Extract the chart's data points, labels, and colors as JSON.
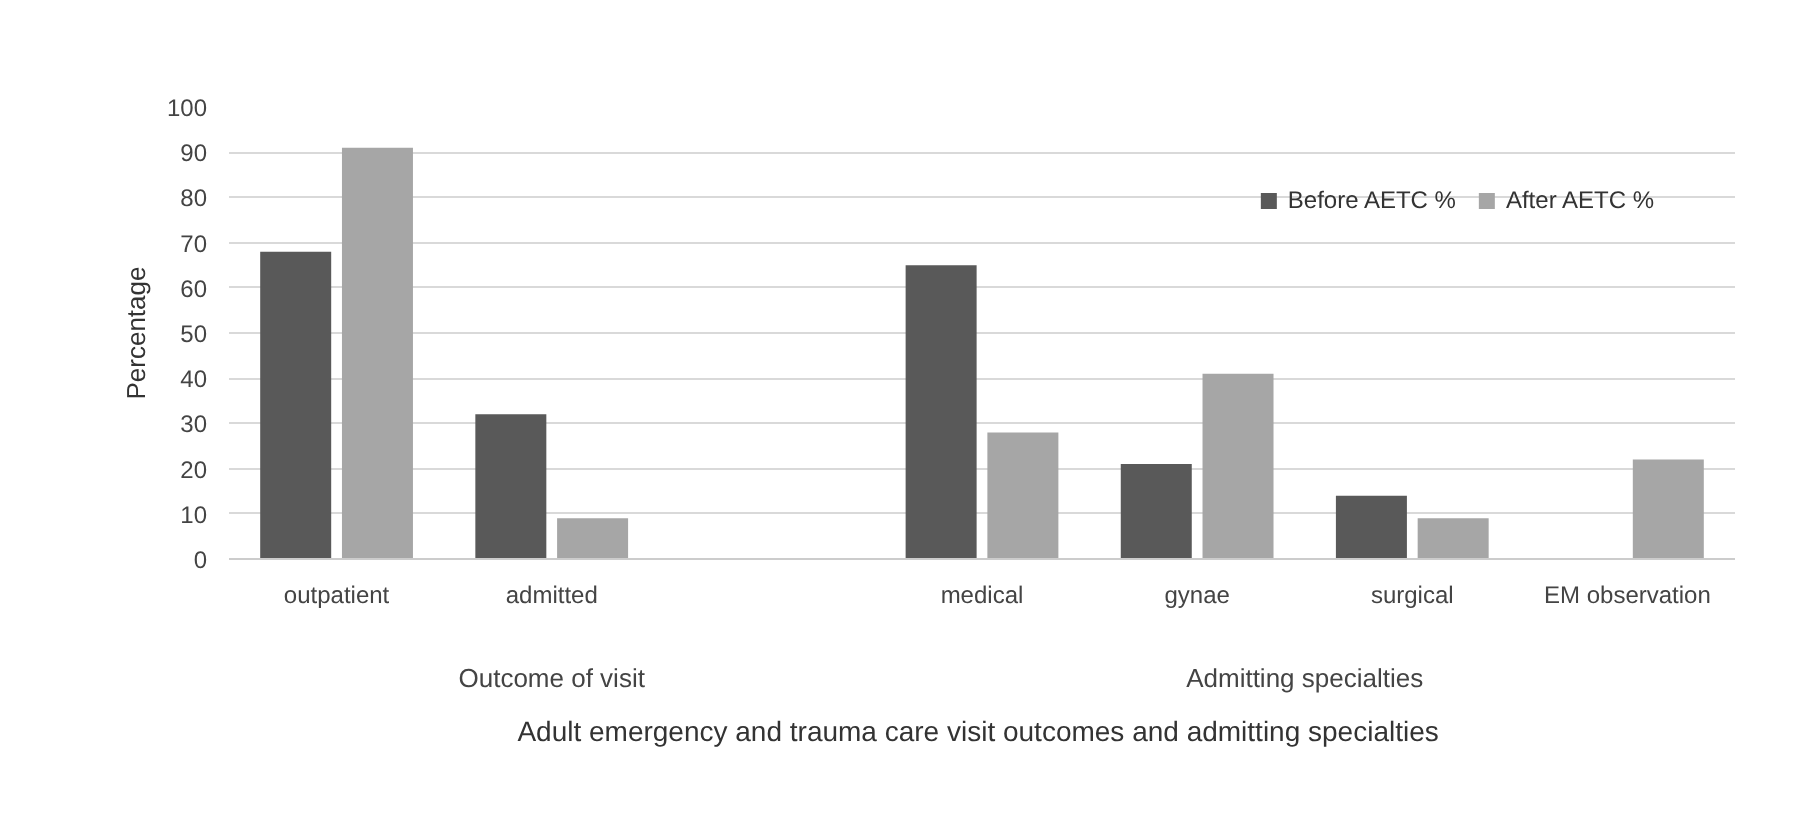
{
  "chart_data": {
    "type": "bar",
    "xlabel": "Adult  emergency and trauma care visit outcomes and admitting specialties",
    "ylabel": "Percentage",
    "categories": [
      "outpatient",
      "admitted",
      null,
      "medical",
      "gynae",
      "surgical",
      "EM observation"
    ],
    "series": [
      {
        "name": "Before AETC %",
        "color": "#595959",
        "values": [
          68,
          32,
          null,
          65,
          21,
          14,
          null
        ]
      },
      {
        "name": "After AETC %",
        "color": "#a6a6a6",
        "values": [
          91,
          9,
          null,
          28,
          41,
          9,
          22
        ]
      }
    ],
    "ylim": [
      0,
      100
    ],
    "yticks": [
      0,
      10,
      20,
      30,
      40,
      50,
      60,
      70,
      80,
      90,
      100
    ],
    "grid": "y",
    "legend": "top right",
    "annotations": [
      "Outcome of visit",
      "Admitting specialties"
    ]
  }
}
